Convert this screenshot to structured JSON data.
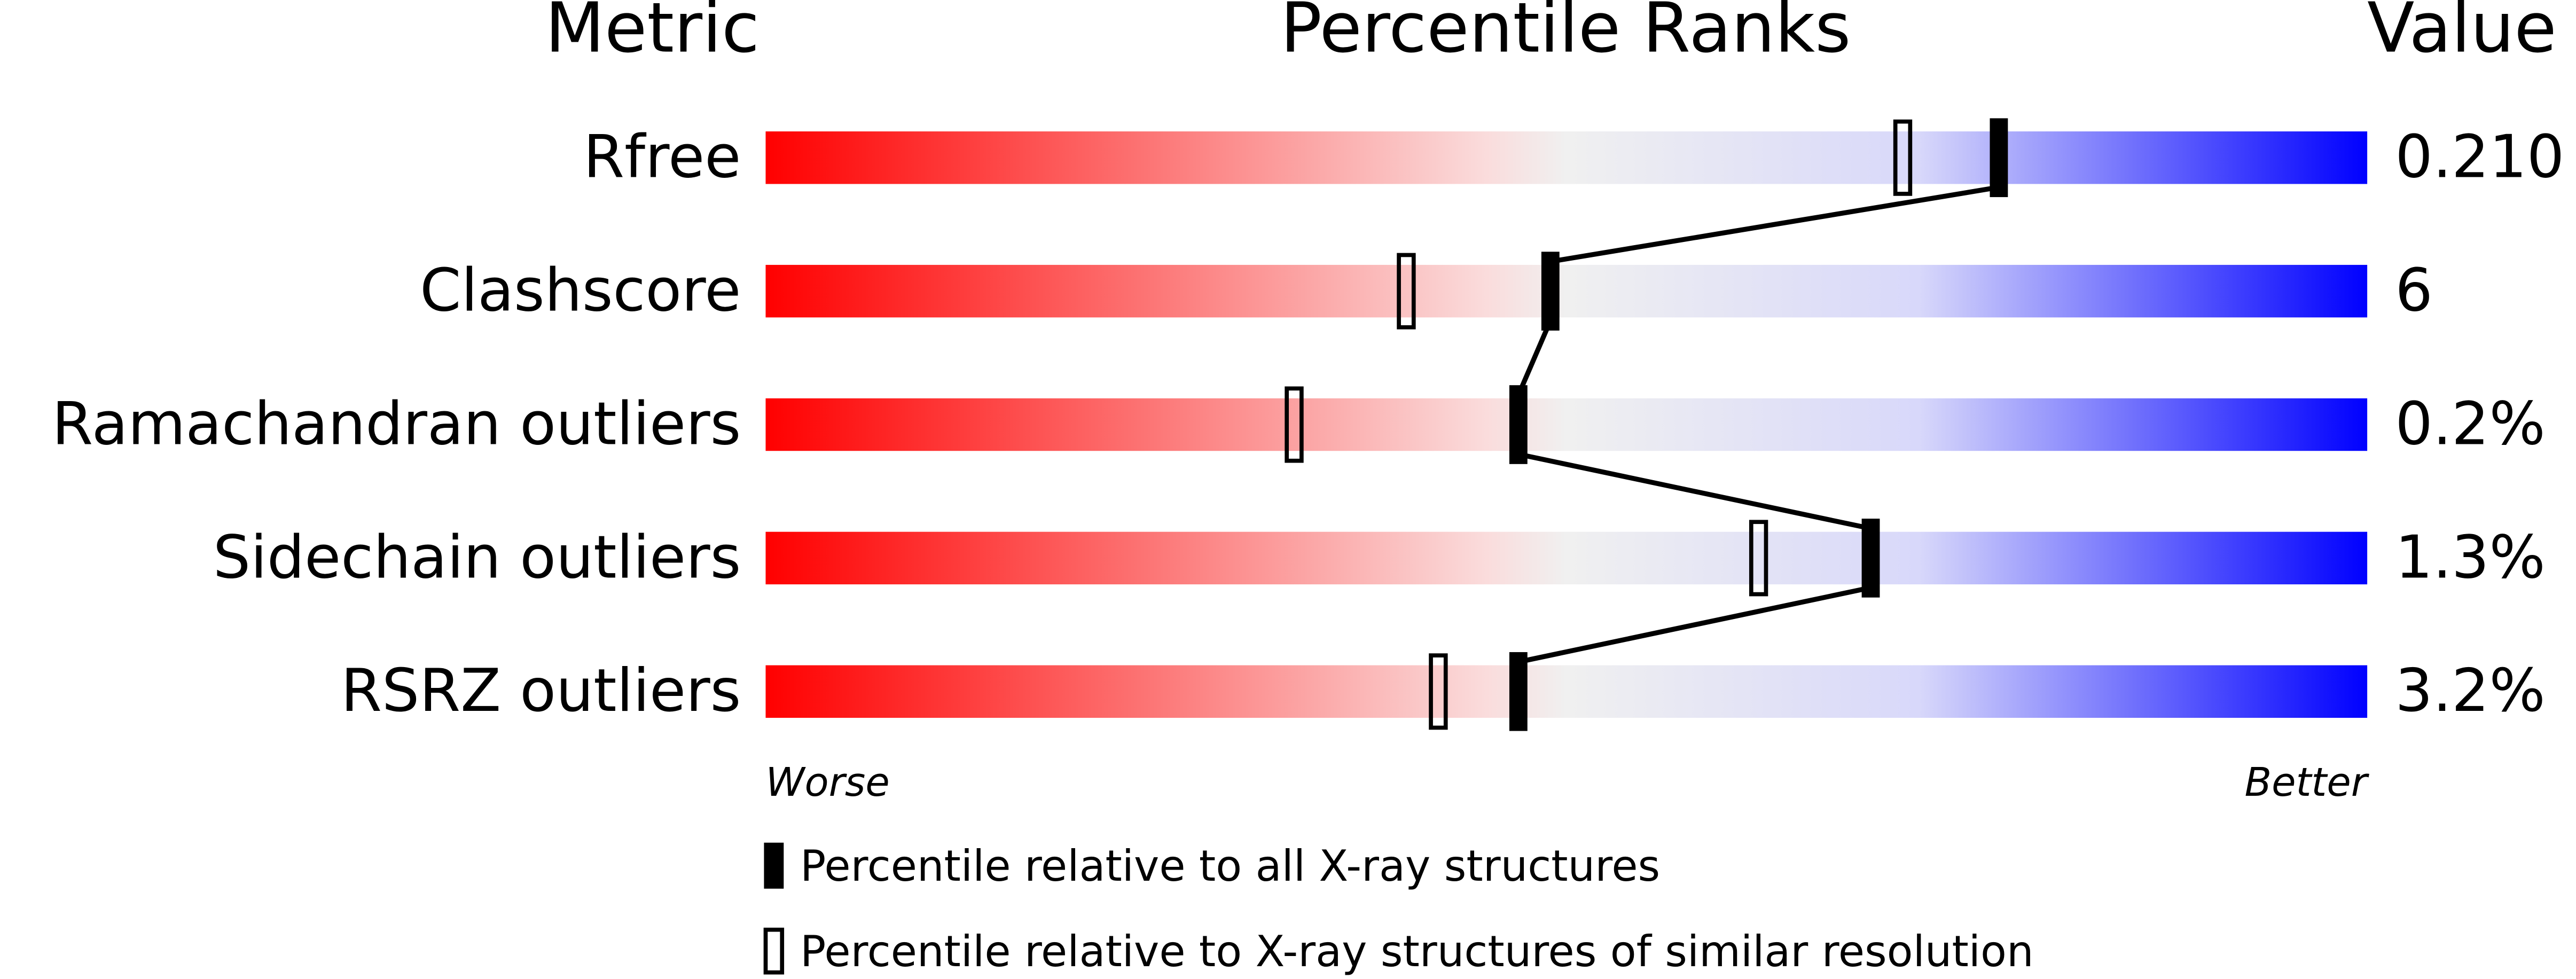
{
  "chart_data": {
    "type": "percentile",
    "header": {
      "metric": "Metric",
      "ranks": "Percentile Ranks",
      "value": "Value"
    },
    "categories": [
      "Rfree",
      "Clashscore",
      "Ramachandran outliers",
      "Sidechain outliers",
      "RSRZ outliers"
    ],
    "metric_values": [
      "0.210",
      "6",
      "0.2%",
      "1.3%",
      "3.2%"
    ],
    "series": [
      {
        "name": "Percentile relative to all X-ray structures",
        "style": "filled",
        "color": "#000000",
        "values": [
          77,
          49,
          47,
          69,
          47
        ]
      },
      {
        "name": "Percentile relative to X-ray structures of similar resolution",
        "style": "open",
        "color": "#000000",
        "values": [
          71,
          40,
          33,
          62,
          42
        ]
      }
    ],
    "xlim": [
      0,
      100
    ],
    "xlabel_left": "Worse",
    "xlabel_right": "Better",
    "gradient": [
      "#ff0000",
      "#fadcdc",
      "#f0f0f0",
      "#d8d8fa",
      "#0000ff"
    ]
  }
}
